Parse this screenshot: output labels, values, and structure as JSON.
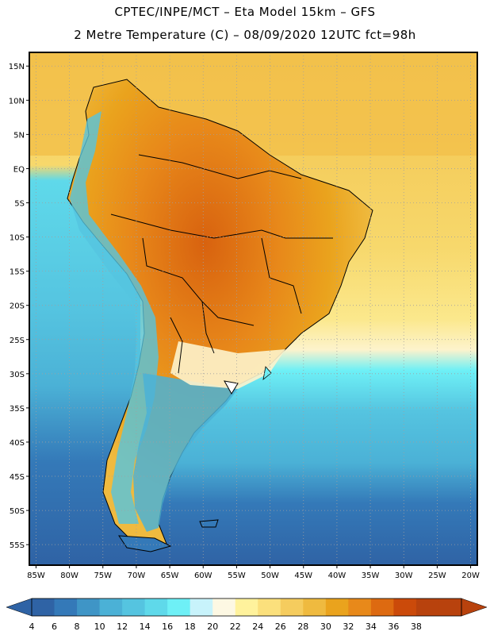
{
  "header": {
    "title_line1": "CPTEC/INPE/MCT –  Eta Model 15km – GFS",
    "title_line2": "2 Metre Temperature (C) – 08/09/2020 12UTC fct=98h"
  },
  "map": {
    "lon_range": [
      -86,
      -19
    ],
    "lat_range": [
      -58,
      17
    ],
    "lat_ticks": [
      "15N",
      "10N",
      "5N",
      "EQ",
      "5S",
      "10S",
      "15S",
      "20S",
      "25S",
      "30S",
      "35S",
      "40S",
      "45S",
      "50S",
      "55S"
    ],
    "lat_values": [
      15,
      10,
      5,
      0,
      -5,
      -10,
      -15,
      -20,
      -25,
      -30,
      -35,
      -40,
      -45,
      -50,
      -55
    ],
    "lon_ticks": [
      "85W",
      "80W",
      "75W",
      "70W",
      "65W",
      "60W",
      "55W",
      "50W",
      "45W",
      "40W",
      "35W",
      "30W",
      "25W",
      "20W"
    ],
    "lon_values": [
      -85,
      -80,
      -75,
      -70,
      -65,
      -60,
      -55,
      -50,
      -45,
      -40,
      -35,
      -30,
      -25,
      -20
    ]
  },
  "colorbar": {
    "labels": [
      "4",
      "6",
      "8",
      "10",
      "12",
      "14",
      "16",
      "18",
      "20",
      "22",
      "24",
      "26",
      "28",
      "30",
      "32",
      "34",
      "36",
      "38"
    ],
    "colors": [
      "#2f63a5",
      "#3479b8",
      "#3f95c6",
      "#4bb1d6",
      "#55c4e0",
      "#5fd9ea",
      "#6ef0f6",
      "#c8f3fb",
      "#fdf8e3",
      "#fff29c",
      "#fbe07c",
      "#f5cc5e",
      "#efba3f",
      "#eaa31d",
      "#e8891a",
      "#dd6a11",
      "#cb4a0a",
      "#b8420d",
      "#b8420d"
    ],
    "left_arrow_color": "#2f63a5",
    "right_arrow_color": "#b8420d"
  }
}
